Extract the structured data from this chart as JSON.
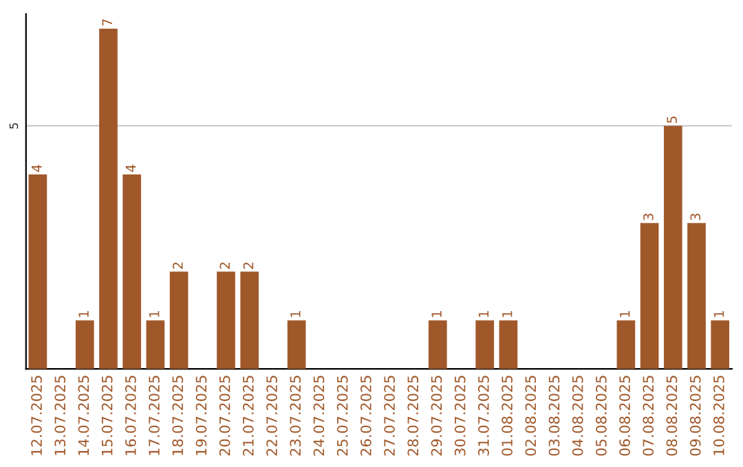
{
  "chart_data": {
    "type": "bar",
    "categories": [
      "12.07.2025",
      "13.07.2025",
      "14.07.2025",
      "15.07.2025",
      "16.07.2025",
      "17.07.2025",
      "18.07.2025",
      "19.07.2025",
      "20.07.2025",
      "21.07.2025",
      "22.07.2025",
      "23.07.2025",
      "24.07.2025",
      "25.07.2025",
      "26.07.2025",
      "27.07.2025",
      "28.07.2025",
      "29.07.2025",
      "30.07.2025",
      "31.07.2025",
      "01.08.2025",
      "02.08.2025",
      "03.08.2025",
      "04.08.2025",
      "05.08.2025",
      "06.08.2025",
      "07.08.2025",
      "08.08.2025",
      "09.08.2025",
      "10.08.2025"
    ],
    "values": [
      4,
      0,
      1,
      7,
      4,
      1,
      2,
      0,
      2,
      2,
      0,
      1,
      0,
      0,
      0,
      0,
      0,
      1,
      0,
      1,
      1,
      0,
      0,
      0,
      0,
      1,
      3,
      5,
      3,
      1
    ],
    "value_labels": [
      "4",
      null,
      "1",
      "7",
      "4",
      "1",
      "2",
      null,
      "2",
      "2",
      null,
      "1",
      null,
      null,
      null,
      null,
      null,
      "1",
      null,
      "1",
      "1",
      null,
      null,
      null,
      null,
      "1",
      "3",
      "5",
      "3",
      "1"
    ],
    "color": "#a0582a",
    "ylim": [
      0,
      7.3
    ],
    "yticks": [
      5
    ],
    "grid": "y"
  }
}
